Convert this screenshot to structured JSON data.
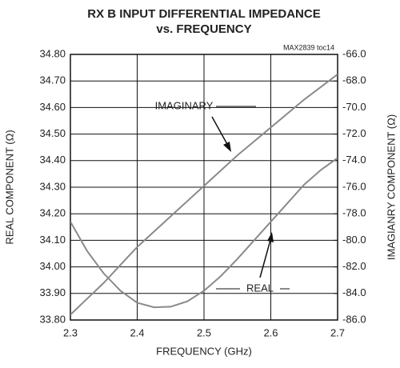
{
  "chart_data": {
    "type": "line",
    "title": [
      "RX B INPUT DIFFERENTIAL IMPEDANCE",
      "vs. FREQUENCY"
    ],
    "note": "MAX2839 toc14",
    "xlabel": "FREQUENCY (GHz)",
    "ylabel": "REAL COMPONENT (Ω)",
    "y2label": "IMAGIANRY COMPONENT (Ω)",
    "annotations": [
      "IMAGINARY",
      "REAL"
    ],
    "x": [
      2.3,
      2.325,
      2.35,
      2.375,
      2.4,
      2.425,
      2.45,
      2.475,
      2.5,
      2.525,
      2.55,
      2.575,
      2.6,
      2.625,
      2.65,
      2.675,
      2.7
    ],
    "series": [
      {
        "name": "REAL",
        "color": "#8a8a8a",
        "axis": "y",
        "values": [
          34.17,
          34.06,
          33.975,
          33.91,
          33.865,
          33.848,
          33.85,
          33.87,
          33.91,
          33.965,
          34.03,
          34.1,
          34.17,
          34.24,
          34.31,
          34.365,
          34.41
        ]
      },
      {
        "name": "IMAGINARY",
        "color": "#8a8a8a",
        "axis": "y2",
        "values": [
          -85.6,
          -84.4,
          -83.2,
          -81.85,
          -80.5,
          -79.35,
          -78.2,
          -77.05,
          -75.9,
          -74.75,
          -73.6,
          -72.55,
          -71.5,
          -70.45,
          -69.4,
          -68.45,
          -67.5
        ]
      }
    ],
    "xlim": [
      2.3,
      2.7
    ],
    "xticks": [
      2.3,
      2.4,
      2.5,
      2.6,
      2.7
    ],
    "ylim": [
      33.8,
      34.8
    ],
    "yticks": [
      {
        "value": 33.8,
        "label": "33.80"
      },
      {
        "value": 33.9,
        "label": "33.90"
      },
      {
        "value": 34.0,
        "label": "34.00"
      },
      {
        "value": 34.1,
        "label": "34.10"
      },
      {
        "value": 34.2,
        "label": "34.20"
      },
      {
        "value": 34.3,
        "label": "34.30"
      },
      {
        "value": 34.4,
        "label": "34.40"
      },
      {
        "value": 34.5,
        "label": "34.50"
      },
      {
        "value": 34.6,
        "label": "34.60"
      },
      {
        "value": 34.7,
        "label": "34.70"
      },
      {
        "value": 34.8,
        "label": "34.80"
      }
    ],
    "y2lim": [
      -86,
      -66
    ],
    "y2ticks": [
      {
        "value": -86,
        "label": "-86.0"
      },
      {
        "value": -84,
        "label": "-84.0"
      },
      {
        "value": -82,
        "label": "-82.0"
      },
      {
        "value": -80,
        "label": "-80.0"
      },
      {
        "value": -78,
        "label": "-78.0"
      },
      {
        "value": -76,
        "label": "-76.0"
      },
      {
        "value": -74,
        "label": "-74.0"
      },
      {
        "value": -72,
        "label": "-72.0"
      },
      {
        "value": -70,
        "label": "-70.0"
      },
      {
        "value": -68,
        "label": "-68.0"
      },
      {
        "value": -66,
        "label": "-66.0"
      }
    ],
    "grid": true
  }
}
